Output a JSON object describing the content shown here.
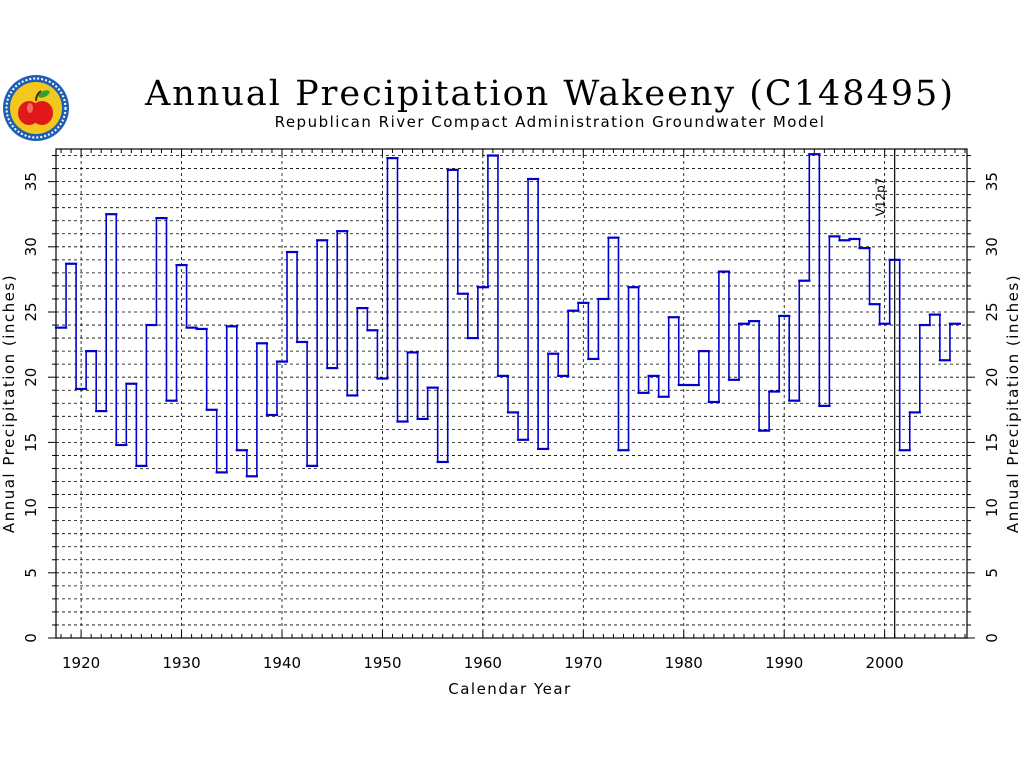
{
  "title": "Annual Precipitation Wakeeny (C148495)",
  "subtitle": "Republican River Compact Administration Groundwater Model",
  "logo_icon": "kansas-apple-seal-icon",
  "chart_data": {
    "type": "line",
    "style": "step",
    "xlabel": "Calendar Year",
    "ylabel": "Annual Precipitation (inches)",
    "xlim": [
      1917.5,
      2008.2
    ],
    "ylim": [
      0,
      37.5
    ],
    "xticks": [
      1920,
      1930,
      1940,
      1950,
      1960,
      1970,
      1980,
      1990,
      2000
    ],
    "yticks": [
      0,
      5,
      10,
      15,
      20,
      25,
      30,
      35
    ],
    "grid": true,
    "line_color": "#0000cc",
    "annotation": {
      "x": 2001,
      "label": "V12p7"
    },
    "years": [
      1918,
      1919,
      1920,
      1921,
      1922,
      1923,
      1924,
      1925,
      1926,
      1927,
      1928,
      1929,
      1930,
      1931,
      1932,
      1933,
      1934,
      1935,
      1936,
      1937,
      1938,
      1939,
      1940,
      1941,
      1942,
      1943,
      1944,
      1945,
      1946,
      1947,
      1948,
      1949,
      1950,
      1951,
      1952,
      1953,
      1954,
      1955,
      1956,
      1957,
      1958,
      1959,
      1960,
      1961,
      1962,
      1963,
      1964,
      1965,
      1966,
      1967,
      1968,
      1969,
      1970,
      1971,
      1972,
      1973,
      1974,
      1975,
      1976,
      1977,
      1978,
      1979,
      1980,
      1981,
      1982,
      1983,
      1984,
      1985,
      1986,
      1987,
      1988,
      1989,
      1990,
      1991,
      1992,
      1993,
      1994,
      1995,
      1996,
      1997,
      1998,
      1999,
      2000,
      2001,
      2002,
      2003,
      2004,
      2005,
      2006,
      2007
    ],
    "values": [
      23.8,
      28.7,
      19.1,
      22.0,
      17.4,
      32.5,
      14.8,
      19.5,
      13.2,
      24.0,
      32.2,
      18.2,
      28.6,
      23.8,
      23.7,
      17.5,
      12.7,
      23.9,
      14.4,
      12.4,
      22.6,
      17.1,
      21.2,
      29.6,
      22.7,
      13.2,
      30.5,
      20.7,
      31.2,
      18.6,
      25.3,
      23.6,
      19.9,
      36.8,
      16.6,
      21.9,
      16.8,
      19.2,
      13.5,
      35.9,
      26.4,
      23.0,
      26.9,
      37.0,
      20.1,
      17.3,
      15.2,
      35.2,
      14.5,
      21.8,
      20.1,
      25.1,
      25.7,
      21.4,
      26.0,
      30.7,
      14.4,
      26.9,
      18.8,
      20.1,
      18.5,
      24.6,
      19.4,
      19.4,
      22.0,
      18.1,
      28.1,
      19.8,
      24.1,
      24.3,
      15.9,
      18.9,
      24.7,
      18.2,
      27.4,
      37.1,
      17.8,
      30.8,
      30.5,
      30.6,
      29.9,
      25.6,
      24.1,
      29.0,
      14.4,
      17.3,
      24.0,
      24.8,
      21.3,
      24.1
    ]
  }
}
